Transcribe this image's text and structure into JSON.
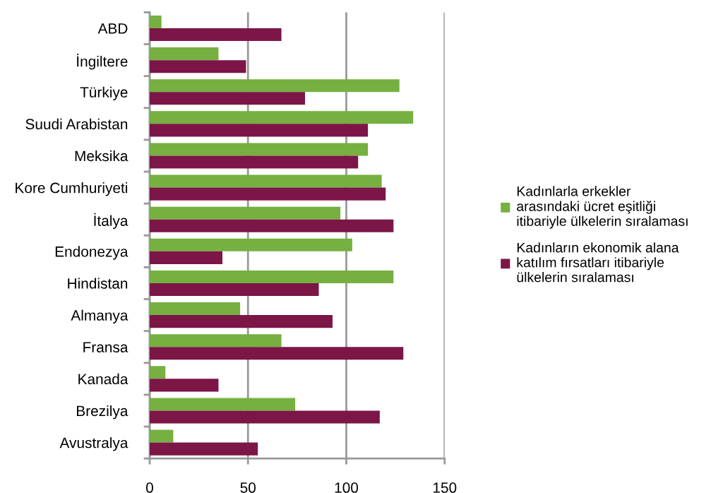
{
  "chart_data": {
    "type": "bar",
    "orientation": "horizontal",
    "categories": [
      "ABD",
      "İngiltere",
      "Türkiye",
      "Suudi Arabistan",
      "Meksika",
      "Kore Cumhuriyeti",
      "İtalya",
      "Endonezya",
      "Hindistan",
      "Almanya",
      "Fransa",
      "Kanada",
      "Brezilya",
      "Avustralya"
    ],
    "series": [
      {
        "name": "Kadınlarla erkekler\narasındaki ücret eşitliği\nitibariyle ülkelerin sıralaması",
        "color": "#76b041",
        "values": [
          6,
          35,
          127,
          134,
          111,
          118,
          97,
          103,
          124,
          46,
          67,
          8,
          74,
          12
        ]
      },
      {
        "name": "Kadınların ekonomik alana\nkatılım fırsatları itibariyle\nülkelerin sıralaması",
        "color": "#7b1646",
        "values": [
          67,
          49,
          79,
          111,
          106,
          120,
          124,
          37,
          86,
          93,
          129,
          35,
          117,
          55
        ]
      }
    ],
    "xlim": [
      0,
      150
    ],
    "xticks": [
      0,
      50,
      100,
      150
    ],
    "grid": "x",
    "legend": "right"
  }
}
